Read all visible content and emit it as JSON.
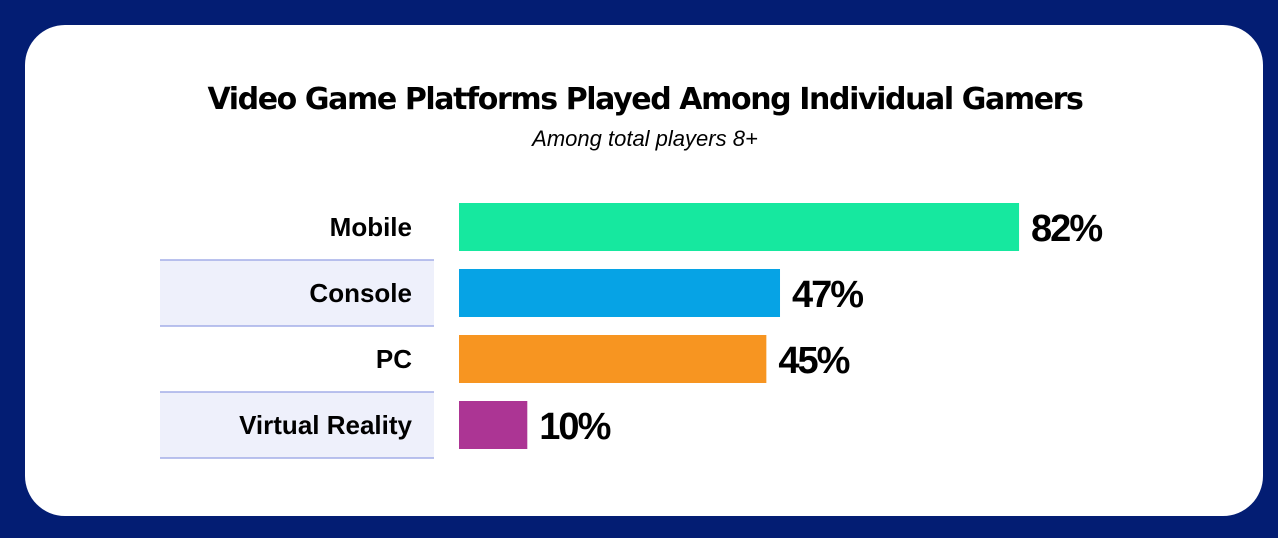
{
  "chart_data": {
    "type": "bar",
    "orientation": "horizontal",
    "title": "Video Game Platforms Played Among Individual Gamers",
    "subtitle": "Among total players 8+",
    "categories": [
      "Mobile",
      "Console",
      "PC",
      "Virtual Reality"
    ],
    "values": [
      82,
      47,
      45,
      10
    ],
    "value_labels": [
      "82%",
      "47%",
      "45%",
      "10%"
    ],
    "bar_colors": [
      "#16e89f",
      "#06a3e5",
      "#f79521",
      "#ac3594"
    ],
    "row_shading": [
      false,
      true,
      false,
      true
    ],
    "row_shade_color": "#eef0fb",
    "row_border_color": "#a3aee8",
    "xlim": [
      0,
      100
    ],
    "grid": false,
    "legend": "none"
  },
  "colors": {
    "background": "#031d73",
    "card": "#ffffff"
  }
}
